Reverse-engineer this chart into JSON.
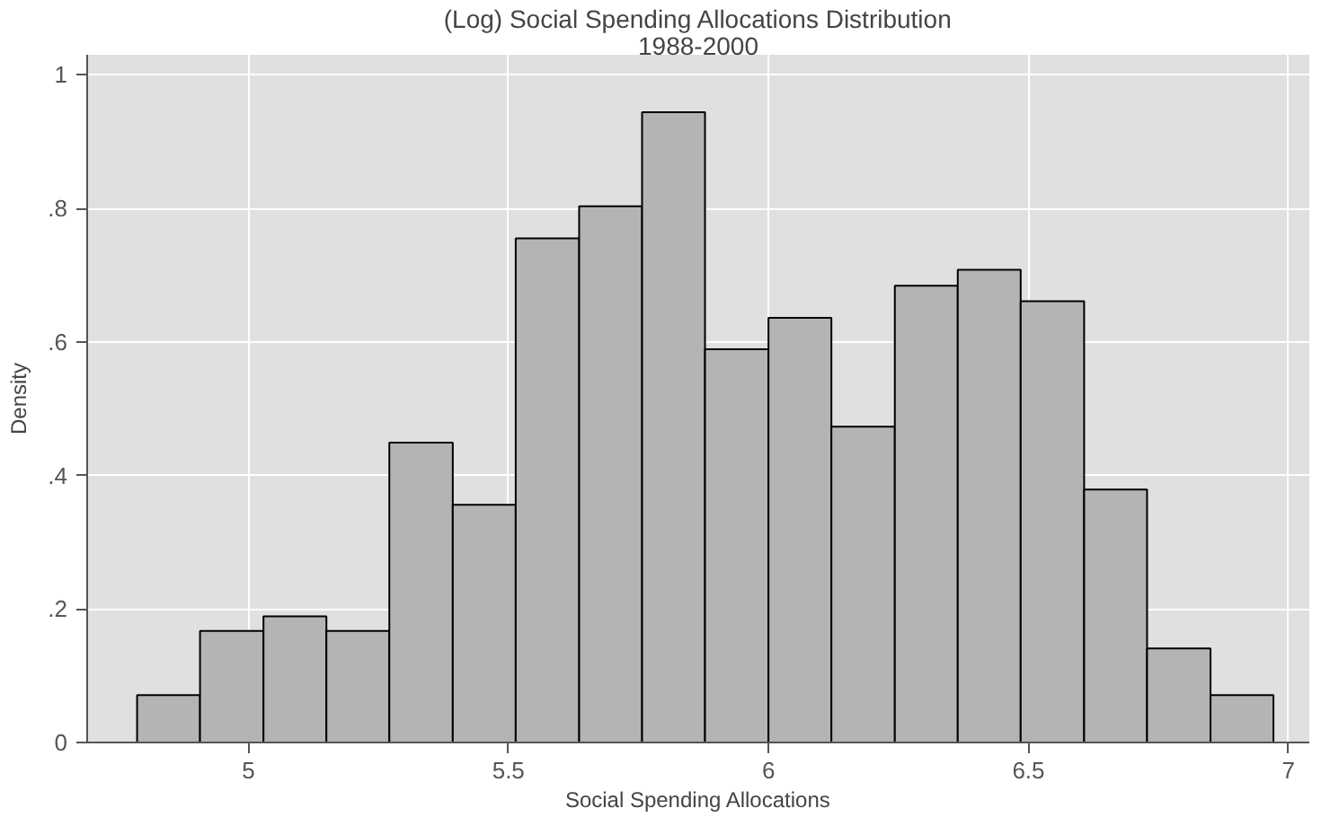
{
  "chart_data": {
    "type": "histogram",
    "title": "(Log) Social Spending Allocations Distribution",
    "subtitle": "1988-2000",
    "xlabel": "Social Spending Allocations",
    "ylabel": "Density",
    "bins": [
      4.786,
      4.907,
      5.029,
      5.15,
      5.271,
      5.393,
      5.514,
      5.636,
      5.757,
      5.878,
      6.0,
      6.121,
      6.243,
      6.364,
      6.485,
      6.607,
      6.728,
      6.85,
      6.971
    ],
    "values": [
      0.071,
      0.167,
      0.189,
      0.167,
      0.449,
      0.356,
      0.755,
      0.803,
      0.944,
      0.589,
      0.636,
      0.473,
      0.684,
      0.708,
      0.661,
      0.379,
      0.141,
      0.071
    ],
    "color": "#b4b4b4",
    "xlim": [
      4.69,
      7.04
    ],
    "xticks": [
      5,
      5.5,
      6,
      6.5,
      7
    ],
    "ylim": [
      0,
      1.03
    ],
    "yticks": [
      0,
      {
        "value": 0.2,
        "label": ".2"
      },
      {
        "value": 0.4,
        "label": ".4"
      },
      {
        "value": 0.6,
        "label": ".6"
      },
      {
        "value": 0.8,
        "label": ".8"
      },
      1
    ],
    "grid": true
  }
}
